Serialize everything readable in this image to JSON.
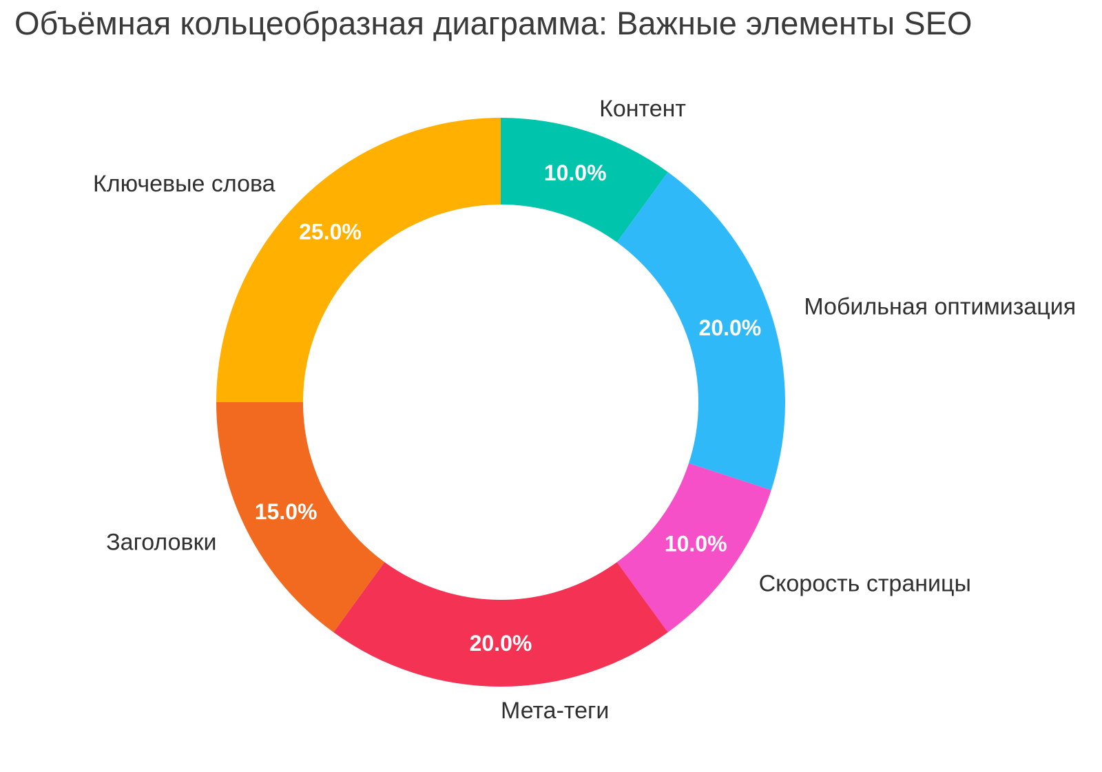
{
  "chart_data": {
    "type": "pie",
    "subtype": "donut",
    "title": "Объёмная кольцеобразная диаграмма: Важные элементы SEO",
    "labels": [
      "Контент",
      "Мобильная оптимизация",
      "Скорость страницы",
      "Мета-теги",
      "Заголовки",
      "Ключевые слова"
    ],
    "values": [
      10.0,
      20.0,
      10.0,
      20.0,
      15.0,
      25.0
    ],
    "percent_labels": [
      "10.0%",
      "20.0%",
      "10.0%",
      "20.0%",
      "15.0%",
      "25.0%"
    ],
    "colors": [
      "#00C4AC",
      "#2FB9F8",
      "#F650C8",
      "#F43254",
      "#F26A20",
      "#FFB000"
    ],
    "start_angle": "12-oclock",
    "direction": "clockwise",
    "hole_ratio": 0.695,
    "legend": "none",
    "grid": "off",
    "background": "#ffffff",
    "title_color": "#3a3a3a",
    "category_label_color": "#303030",
    "percent_label_color": "#ffffff"
  }
}
